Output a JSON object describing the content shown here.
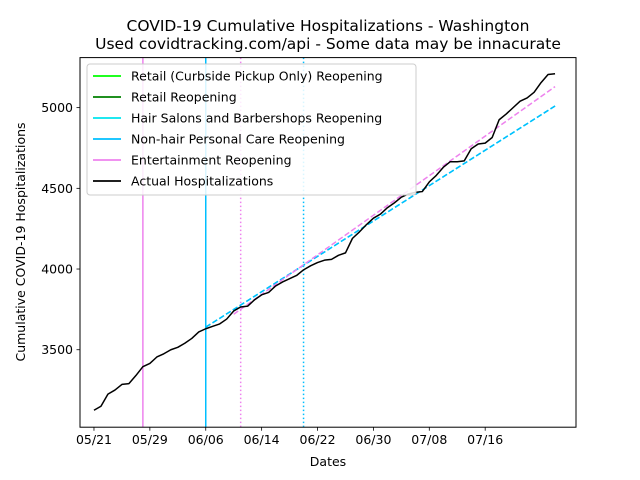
{
  "chart_data": {
    "type": "line",
    "title": "COVID-19 Cumulative Hospitalizations - Washington",
    "subtitle": "Used covidtracking.com/api - Some data may be innacurate",
    "xlabel": "Dates",
    "ylabel": "Cumulative COVID-19 Hospitalizations",
    "x_range": [
      "2020-05-19",
      "2020-07-29"
    ],
    "ylim": [
      3020,
      5310
    ],
    "x_ticks": [
      {
        "date": "2020-05-21",
        "label": "05/21"
      },
      {
        "date": "2020-05-29",
        "label": "05/29"
      },
      {
        "date": "2020-06-06",
        "label": "06/06"
      },
      {
        "date": "2020-06-14",
        "label": "06/14"
      },
      {
        "date": "2020-06-22",
        "label": "06/22"
      },
      {
        "date": "2020-06-30",
        "label": "06/30"
      },
      {
        "date": "2020-07-08",
        "label": "07/08"
      },
      {
        "date": "2020-07-16",
        "label": "07/16"
      }
    ],
    "y_ticks": [
      3500,
      4000,
      4500,
      5000
    ],
    "grid": false,
    "legend_position": "top-left",
    "legend": [
      {
        "label": "Retail (Curbside Pickup Only) Reopening",
        "color": "#00ff00"
      },
      {
        "label": "Retail Reopening",
        "color": "#008000"
      },
      {
        "label": "Hair Salons and Barbershops Reopening",
        "color": "#00e5ee"
      },
      {
        "label": "Non-hair Personal Care Reopening",
        "color": "#00bfff"
      },
      {
        "label": "Entertainment Reopening",
        "color": "#ee82ee"
      },
      {
        "label": "Actual Hospitalizations",
        "color": "#000000"
      }
    ],
    "reopening_lines": [
      {
        "name": "Entertainment Reopening",
        "date": "2020-05-28",
        "color": "#ee82ee",
        "style": "solid"
      },
      {
        "name": "Non-hair Personal Care Reopening",
        "date": "2020-06-06",
        "color": "#00bfff",
        "style": "solid"
      },
      {
        "name": "Entertainment Reopening",
        "date": "2020-06-11",
        "color": "#ee82ee",
        "style": "dotted"
      },
      {
        "name": "Non-hair Personal Care Reopening",
        "date": "2020-06-20",
        "color": "#00bfff",
        "style": "dotted"
      }
    ],
    "series": [
      {
        "name": "Actual Hospitalizations",
        "color": "#000000",
        "style": "solid",
        "x": [
          "2020-05-21",
          "2020-05-22",
          "2020-05-23",
          "2020-05-24",
          "2020-05-25",
          "2020-05-26",
          "2020-05-27",
          "2020-05-28",
          "2020-05-29",
          "2020-05-30",
          "2020-05-31",
          "2020-06-01",
          "2020-06-02",
          "2020-06-03",
          "2020-06-04",
          "2020-06-05",
          "2020-06-06",
          "2020-06-07",
          "2020-06-08",
          "2020-06-09",
          "2020-06-10",
          "2020-06-11",
          "2020-06-12",
          "2020-06-13",
          "2020-06-14",
          "2020-06-15",
          "2020-06-16",
          "2020-06-17",
          "2020-06-18",
          "2020-06-19",
          "2020-06-20",
          "2020-06-21",
          "2020-06-22",
          "2020-06-23",
          "2020-06-24",
          "2020-06-25",
          "2020-06-26",
          "2020-06-27",
          "2020-06-28",
          "2020-06-29",
          "2020-06-30",
          "2020-07-01",
          "2020-07-02",
          "2020-07-03",
          "2020-07-04",
          "2020-07-05",
          "2020-07-06",
          "2020-07-07",
          "2020-07-08",
          "2020-07-09",
          "2020-07-10",
          "2020-07-11",
          "2020-07-12",
          "2020-07-13",
          "2020-07-14",
          "2020-07-15",
          "2020-07-16",
          "2020-07-17",
          "2020-07-18",
          "2020-07-19",
          "2020-07-20",
          "2020-07-21",
          "2020-07-22",
          "2020-07-23",
          "2020-07-24",
          "2020-07-25",
          "2020-07-26"
        ],
        "values": [
          3125,
          3150,
          3225,
          3250,
          3285,
          3290,
          3340,
          3395,
          3415,
          3455,
          3475,
          3500,
          3515,
          3540,
          3570,
          3610,
          3630,
          3645,
          3660,
          3690,
          3740,
          3765,
          3770,
          3810,
          3840,
          3855,
          3895,
          3920,
          3940,
          3960,
          3995,
          4020,
          4040,
          4055,
          4060,
          4085,
          4100,
          4190,
          4230,
          4275,
          4315,
          4340,
          4380,
          4410,
          4445,
          4465,
          4475,
          4480,
          4540,
          4580,
          4630,
          4665,
          4665,
          4670,
          4745,
          4775,
          4780,
          4815,
          4925,
          4960,
          5000,
          5040,
          5060,
          5095,
          5155,
          5205,
          5210
        ]
      },
      {
        "name": "Hair Salons and Barbershops Reopening",
        "color": "#00e5ee",
        "style": "dashed",
        "x": [
          "2020-06-06",
          "2020-07-26"
        ],
        "values": [
          3640,
          5010
        ]
      },
      {
        "name": "Non-hair Personal Care Reopening",
        "color": "#00bfff",
        "style": "dashed",
        "x": [
          "2020-06-06",
          "2020-07-26"
        ],
        "values": [
          3640,
          5010
        ]
      },
      {
        "name": "Entertainment Reopening",
        "color": "#ee82ee",
        "style": "dashed",
        "x": [
          "2020-06-10",
          "2020-07-26"
        ],
        "values": [
          3720,
          5130
        ]
      }
    ]
  }
}
